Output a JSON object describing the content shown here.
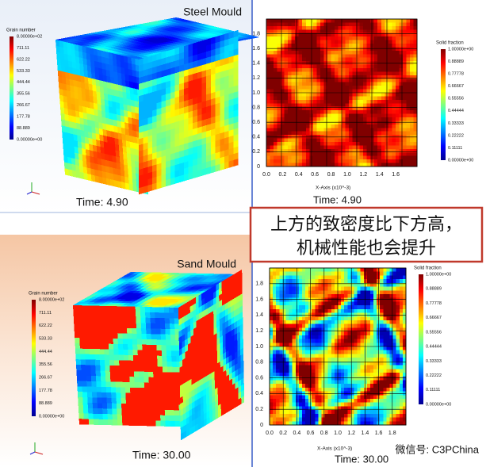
{
  "top": {
    "label": "Steel Mould",
    "time": "Time:  4.90",
    "cube_legend": {
      "title": "Grain number",
      "labels": [
        "8.00000e+02",
        "711.11",
        "622.22",
        "533.33",
        "444.44",
        "355.56",
        "266.67",
        "177.78",
        "88.889",
        "0.00000e+00"
      ]
    },
    "plot": {
      "yticks": [
        "0",
        "0.2",
        "0.4",
        "0.6",
        "0.8",
        "1.0",
        "1.2",
        "1.4",
        "1.6",
        "1.8"
      ],
      "xticks": [
        "0.0",
        "0.2",
        "0.4",
        "0.6",
        "0.8",
        "1.0",
        "1.2",
        "1.4",
        "1.6"
      ],
      "xlabel": "X-Axis (x10^-3)",
      "time": "Time:  4.90",
      "legend": {
        "title": "Solid fraction",
        "labels": [
          "1.00000e+00",
          "0.88889",
          "0.77778",
          "0.66667",
          "0.55556",
          "0.44444",
          "0.33333",
          "0.22222",
          "0.11111",
          "0.00000e+00"
        ]
      }
    }
  },
  "bottom": {
    "label": "Sand Mould",
    "time": "Time:  30.00",
    "cube_legend": {
      "title": "Grain number",
      "labels": [
        "8.00000e+02",
        "711.11",
        "622.22",
        "533.33",
        "444.44",
        "355.56",
        "266.67",
        "177.78",
        "88.889",
        "0.00000e+00"
      ]
    },
    "plot": {
      "yticks": [
        "0",
        "0.2",
        "0.4",
        "0.6",
        "0.8",
        "1.0",
        "1.2",
        "1.4",
        "1.6",
        "1.8"
      ],
      "xticks": [
        "0.0",
        "0.2",
        "0.4",
        "0.6",
        "0.8",
        "1.0",
        "1.2",
        "1.4",
        "1.6",
        "1.8"
      ],
      "xlabel": "X-Axis (x10^-3)",
      "time": "Time:  30.00",
      "legend": {
        "title": "Solid fraction",
        "labels": [
          "1.00000e+00",
          "0.88889",
          "0.77778",
          "0.66667",
          "0.55556",
          "0.44444",
          "0.33333",
          "0.22222",
          "0.11111",
          "0.00000e+00"
        ]
      }
    }
  },
  "note": {
    "lines": [
      "上方的致密度比下方高，",
      "机械性能也会提升"
    ]
  },
  "watermark": "微信号: C3PChina"
}
